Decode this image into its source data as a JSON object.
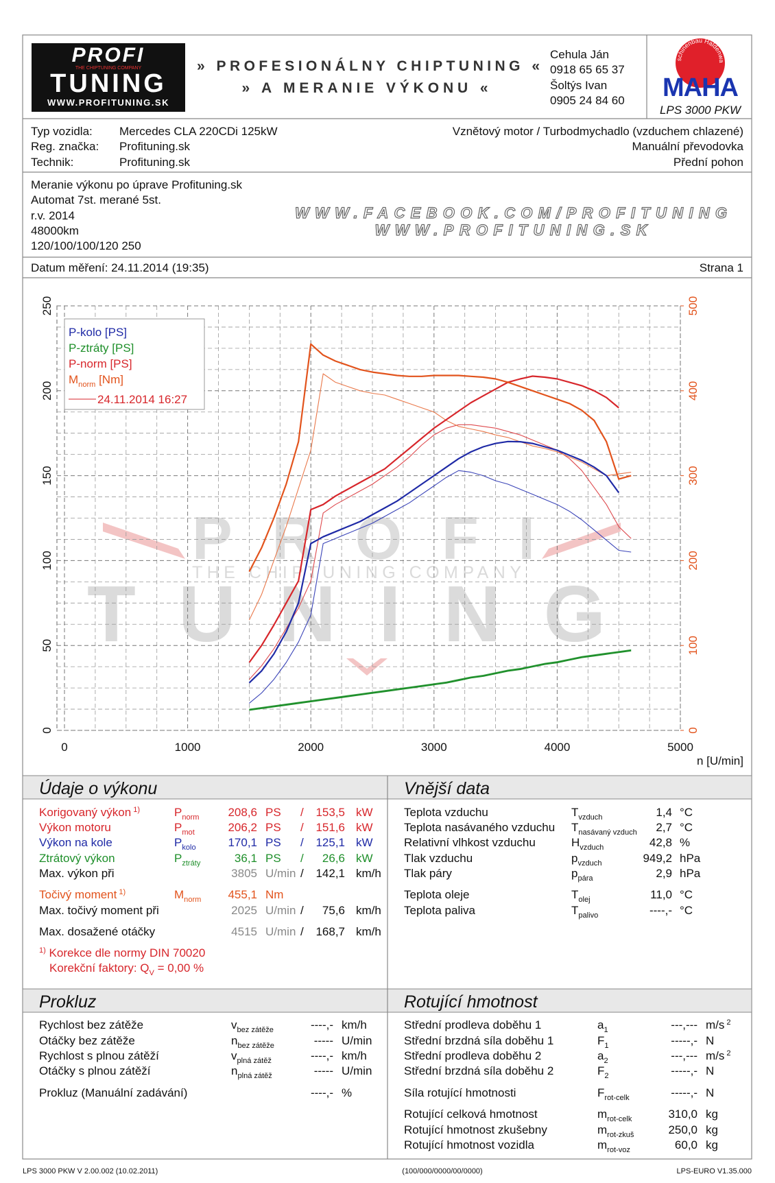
{
  "header": {
    "logo": {
      "top": "PROFI",
      "tagline": "THE CHIPTUNING COMPANY",
      "bottom": "TUNING",
      "url": "WWW.PROFITUNING.SK"
    },
    "slogan": [
      "» PROFESIONÁLNY CHIPTUNING «",
      "» A MERANIE VÝKONU «"
    ],
    "contacts": [
      "Cehula Ján",
      "0918 65 65 37",
      "Šoltýs Ivan",
      "0905 24 84 60"
    ],
    "maha": {
      "ring": "Maschinenbau Haldenwang",
      "name": "MAHA",
      "model": "LPS 3000 PKW"
    }
  },
  "vehicle": {
    "rows": [
      [
        "Typ vozidla:",
        "Mercedes CLA 220CDi 125kW"
      ],
      [
        "Reg. značka:",
        "Profituning.sk"
      ],
      [
        "Technik:",
        "Profituning.sk"
      ]
    ],
    "right": [
      "Vznětový motor / Turbodmychadlo (vzduchem chlazené)",
      "Manuální převodovka",
      "Přední pohon"
    ]
  },
  "notes": {
    "lines": [
      "Meranie výkonu po úprave Profituning.sk",
      "Automat 7st. merané 5st.",
      "r.v. 2014",
      "48000km",
      "120/100/100/120 250"
    ],
    "links": [
      "WWW.FACEBOOK.COM/PROFITUNING",
      "WWW.PROFITUNING.SK"
    ]
  },
  "date": {
    "text": "Datum měření: 24.11.2014 (19:35)",
    "page": "Strana 1"
  },
  "chart_data": {
    "type": "line",
    "x_label": "n [U/min]",
    "xlim": [
      0,
      5000
    ],
    "xticks": [
      0,
      1000,
      2000,
      3000,
      4000,
      5000
    ],
    "minor_xticks": [
      250,
      500,
      750,
      1250,
      1500,
      1750,
      2250,
      2500,
      2750,
      3250,
      3500,
      3750,
      4250,
      4500,
      4750
    ],
    "ylim": [
      0,
      250
    ],
    "yticks": [
      0,
      50,
      100,
      150,
      200,
      250
    ],
    "minor_yticks": [
      12.5,
      25,
      37.5,
      62.5,
      75,
      87.5,
      112.5,
      125,
      137.5,
      162.5,
      175,
      187.5,
      212.5,
      225,
      237.5
    ],
    "y2lim": [
      0,
      500
    ],
    "y2ticks": [
      0,
      100,
      200,
      300,
      400,
      500
    ],
    "y2_color": "#e2531c",
    "grid": true,
    "legend_position": "upper left",
    "watermark": {
      "top": "PROFI",
      "tagline": "THE CHIPTUNING COMPANY",
      "bottom": "TUNING"
    },
    "x": [
      1500,
      1600,
      1700,
      1800,
      1900,
      2000,
      2100,
      2200,
      2300,
      2400,
      2500,
      2600,
      2700,
      2800,
      2900,
      3000,
      3100,
      3200,
      3300,
      3400,
      3500,
      3600,
      3700,
      3800,
      3900,
      4000,
      4100,
      4200,
      4300,
      4400,
      4500,
      4600
    ],
    "series": [
      {
        "name": "P-kolo [PS]",
        "color": "#1f2aa6",
        "values": [
          28,
          35,
          45,
          58,
          75,
          110,
          114,
          117,
          120,
          123,
          127,
          131,
          135,
          140,
          145,
          150,
          155,
          160,
          164,
          167,
          169,
          170.1,
          170,
          169,
          167,
          165,
          162,
          159,
          155,
          150,
          140,
          null
        ]
      },
      {
        "name": "P-ztráty [PS]",
        "color": "#1e8f2a",
        "values": [
          12,
          13,
          14,
          15,
          16,
          17,
          18,
          19,
          20,
          21,
          22,
          23,
          24,
          25,
          26,
          27,
          28,
          29.5,
          31,
          32,
          33.5,
          35,
          36,
          37.5,
          39,
          40,
          41.5,
          43,
          44,
          45,
          46,
          47
        ]
      },
      {
        "name": "P-norm [PS]",
        "color": "#d7262b",
        "values": [
          40,
          50,
          62,
          75,
          88,
          130,
          133,
          138,
          142,
          146,
          150,
          154,
          160,
          166,
          172,
          178,
          183,
          188,
          193,
          197,
          201,
          205,
          207,
          208.6,
          208,
          207,
          205,
          203,
          200,
          196,
          190,
          null
        ]
      },
      {
        "name": {
          "t": "M",
          "s": "norm",
          "after": " [Nm]"
        },
        "color": "#e2531c",
        "axis": "y2",
        "values": [
          187,
          215,
          250,
          290,
          340,
          455,
          442,
          435,
          430,
          425,
          422,
          420,
          418,
          417,
          417,
          418,
          418,
          418,
          417,
          416,
          414,
          410,
          405,
          400,
          395,
          390,
          385,
          377,
          365,
          340,
          296,
          300
        ]
      }
    ],
    "compare": {
      "name": "24.11.2014 16:27",
      "color": "#d7262b",
      "series": [
        {
          "color": "#3a44b8",
          "values": [
            16,
            22,
            30,
            40,
            52,
            68,
            110,
            113,
            116,
            119,
            122,
            126,
            130,
            134,
            139,
            144,
            149,
            153,
            152,
            150,
            147,
            145,
            142,
            139,
            136,
            133,
            129,
            124,
            118,
            112,
            106,
            105
          ]
        },
        {
          "color": "#3aa046",
          "values": [
            12.5,
            13.5,
            14.5,
            15.5,
            16.5,
            17.5,
            18.5,
            19.5,
            20.5,
            21.5,
            22.5,
            23.5,
            24.5,
            25.5,
            26.5,
            27.5,
            28.5,
            30,
            31.5,
            32.5,
            34,
            35.5,
            36.5,
            38,
            39.5,
            40.5,
            42,
            43.5,
            44.5,
            45.5,
            46.5,
            47.5
          ]
        },
        {
          "color": "#de4a4e",
          "values": [
            30,
            38,
            48,
            60,
            72,
            88,
            128,
            133,
            137,
            141,
            145,
            150,
            155,
            161,
            168,
            174,
            178,
            180,
            180,
            179,
            178,
            176,
            174,
            171,
            168,
            165,
            160,
            153,
            143,
            133,
            120,
            113
          ]
        },
        {
          "color": "#e9784a",
          "axis": "y2",
          "values": [
            130,
            160,
            200,
            240,
            285,
            330,
            420,
            410,
            405,
            400,
            397,
            395,
            390,
            385,
            380,
            375,
            365,
            358,
            355,
            352,
            348,
            345,
            340,
            335,
            332,
            328,
            322,
            316,
            308,
            300,
            302,
            304
          ]
        }
      ]
    }
  },
  "performance": {
    "title": "Údaje o výkonu",
    "rows": [
      {
        "color": "#d7262b",
        "cells": [
          {
            "t": "Korigovaný výkon",
            "sup": "1)"
          },
          {
            "t": "P",
            "s": "norm"
          },
          "208,6",
          "PS",
          "/",
          "153,5",
          "kW"
        ]
      },
      {
        "color": "#d7262b",
        "cells": [
          "Výkon motoru",
          {
            "t": "P",
            "s": "mot"
          },
          "206,2",
          "PS",
          "/",
          "151,6",
          "kW"
        ]
      },
      {
        "color": "#1f2aa6",
        "cells": [
          "Výkon na kole",
          {
            "t": "P",
            "s": "kolo"
          },
          "170,1",
          "PS",
          "/",
          "125,1",
          "kW"
        ]
      },
      {
        "color": "#1e8f2a",
        "cells": [
          "Ztrátový výkon",
          {
            "t": "P",
            "s": "ztráty"
          },
          "36,1",
          "PS",
          "/",
          "26,6",
          "kW"
        ]
      },
      {
        "cells": [
          "Max. výkon při",
          null,
          "3805",
          "U/min",
          "/",
          "142,1",
          "km/h"
        ]
      },
      {
        "color": "#e2531c",
        "cells": [
          {
            "t": "Točivý moment",
            "sup": "1)"
          },
          {
            "t": "M",
            "s": "norm"
          },
          "455,1",
          "Nm",
          null,
          null,
          null
        ]
      },
      {
        "cells": [
          "Max. točivý moment při",
          null,
          "2025",
          "U/min",
          "/",
          "75,6",
          "km/h"
        ]
      },
      {
        "cells": [
          "Max. dosažené otáčky",
          null,
          "4515",
          "U/min",
          "/",
          "168,7",
          "km/h"
        ]
      }
    ],
    "notes": [
      {
        "pre": "1)",
        "t": " Korekce dle normy DIN 70020"
      },
      {
        "t": "Korekční faktory: Q",
        "s": "V",
        "after": " =   0,00 %"
      }
    ]
  },
  "external": {
    "title": "Vnější data",
    "rows": [
      {
        "cells": [
          "Teplota vzduchu",
          {
            "t": "T",
            "s": "vzduch"
          },
          "1,4",
          "°C"
        ]
      },
      {
        "cells": [
          "Teplota nasávaného vzduchu",
          {
            "t": "T",
            "s": "nasávaný vzduch"
          },
          "2,7",
          "°C"
        ]
      },
      {
        "cells": [
          "Relativní vlhkost vzduchu",
          {
            "t": "H",
            "s": "vzduch"
          },
          "42,8",
          "%"
        ]
      },
      {
        "cells": [
          "Tlak vzduchu",
          {
            "t": "p",
            "s": "vzduch"
          },
          "949,2",
          "hPa"
        ]
      },
      {
        "cells": [
          "Tlak páry",
          {
            "t": "p",
            "s": "pára"
          },
          "2,9",
          "hPa"
        ]
      },
      {
        "cells": [
          "Teplota oleje",
          {
            "t": "T",
            "s": "olej"
          },
          "11,0",
          "°C"
        ]
      },
      {
        "cells": [
          "Teplota paliva",
          {
            "t": "T",
            "s": "palivo"
          },
          "----,-",
          "°C"
        ]
      }
    ]
  },
  "slip": {
    "title": "Prokluz",
    "rows": [
      {
        "cells": [
          "Rychlost bez zátěže",
          {
            "t": "v",
            "s": "bez zátěže"
          },
          "----,-",
          "km/h"
        ]
      },
      {
        "cells": [
          "Otáčky bez zátěže",
          {
            "t": "n",
            "s": "bez zátěže"
          },
          "-----",
          "U/min"
        ]
      },
      {
        "cells": [
          "Rychlost s plnou zátěží",
          {
            "t": "v",
            "s": "plná zátěž"
          },
          "----,-",
          "km/h"
        ]
      },
      {
        "cells": [
          "Otáčky s plnou zátěží",
          {
            "t": "n",
            "s": "plná zátěž"
          },
          "-----",
          "U/min"
        ]
      },
      {
        "cells": [
          "Prokluz (Manuální zadávání)",
          null,
          "----,-",
          "%"
        ]
      }
    ]
  },
  "rotating": {
    "title": "Rotující hmotnost",
    "rows": [
      {
        "cells": [
          "Střední prodleva doběhu 1",
          {
            "t": "a",
            "s": "1"
          },
          "---,---",
          {
            "t": "m/s",
            "sup": "2"
          }
        ]
      },
      {
        "cells": [
          "Střední brzdná síla doběhu 1",
          {
            "t": "F",
            "s": "1"
          },
          "-----,-",
          "N"
        ]
      },
      {
        "cells": [
          "Střední prodleva doběhu 2",
          {
            "t": "a",
            "s": "2"
          },
          "---,---",
          {
            "t": "m/s",
            "sup": "2"
          }
        ]
      },
      {
        "cells": [
          "Střední brzdná síla doběhu 2",
          {
            "t": "F",
            "s": "2"
          },
          "-----,-",
          "N"
        ]
      },
      {
        "cells": [
          "Síla rotující hmotnosti",
          {
            "t": "F",
            "s": "rot-celk"
          },
          "-----,-",
          "N"
        ]
      },
      {
        "cells": [
          "Rotující celková hmotnost",
          {
            "t": "m",
            "s": "rot-celk"
          },
          "310,0",
          "kg"
        ]
      },
      {
        "cells": [
          "Rotující hmotnost zkušebny",
          {
            "t": "m",
            "s": "rot-zkuš"
          },
          "250,0",
          "kg"
        ]
      },
      {
        "cells": [
          "Rotující hmotnost vozidla",
          {
            "t": "m",
            "s": "rot-voz"
          },
          "60,0",
          "kg"
        ]
      }
    ]
  },
  "footer": {
    "left": "LPS 3000 PKW V 2.00.002 (10.02.2011)",
    "center": "(100/000/0000/00/0000)",
    "right": "LPS-EURO V1.35.000"
  }
}
